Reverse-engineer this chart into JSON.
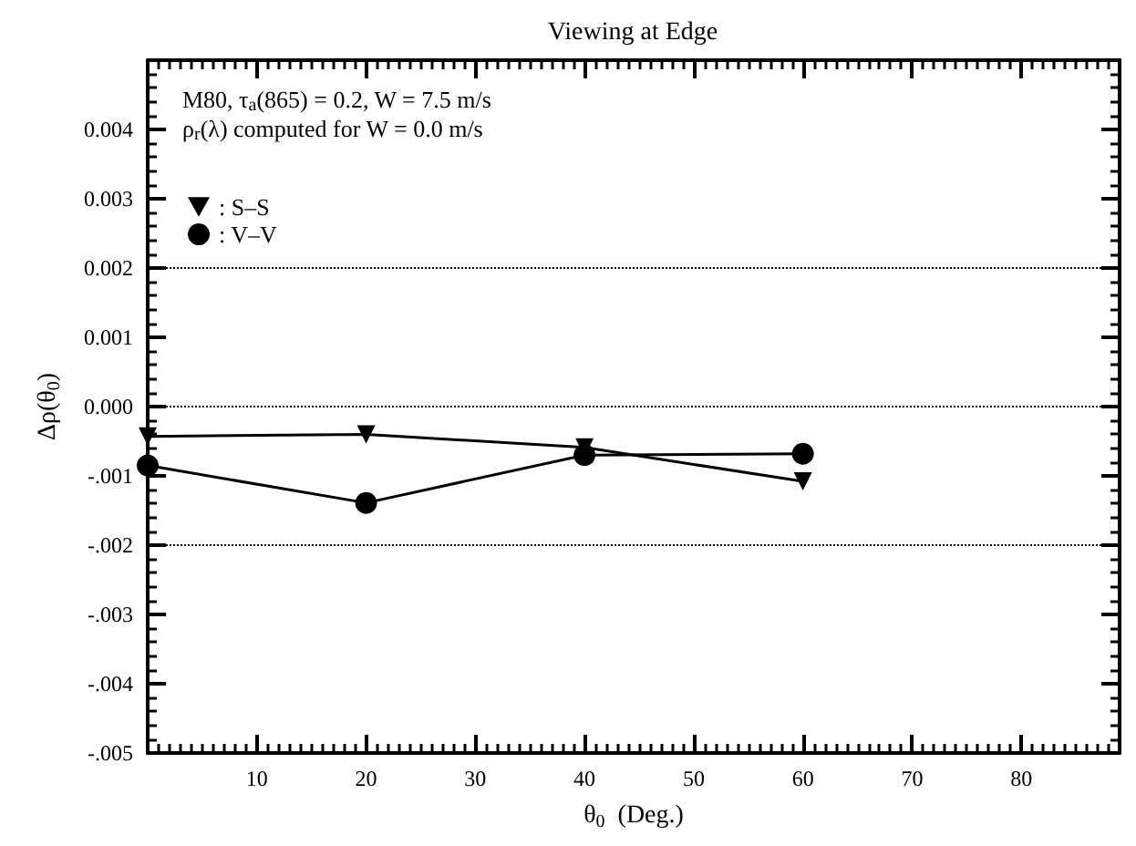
{
  "chart_data": {
    "type": "line",
    "title": "Viewing at Edge",
    "xlabel": "θ$_{0}$  (Deg.)",
    "ylabel": "Δρ(θ$_{0}$)",
    "annotations": [
      "M80, τ$_{a}$(865) = 0.2, W = 7.5 m/s",
      "ρ$_{r}$(λ) computed for W = 0.0 m/s"
    ],
    "x": [
      0,
      20,
      40,
      60
    ],
    "series": [
      {
        "name": ": S–S",
        "color": "#000000",
        "marker": "triangle",
        "values": [
          -0.00043,
          -0.0004,
          -0.00059,
          -0.00108
        ]
      },
      {
        "name": ": V–V",
        "color": "#000000",
        "marker": "circle",
        "values": [
          -0.00085,
          -0.00139,
          -0.0007,
          -0.00068
        ]
      }
    ],
    "xlim": [
      0,
      89
    ],
    "xticks": [
      10,
      20,
      30,
      40,
      50,
      60,
      70,
      80
    ],
    "ylim": [
      -0.005,
      0.005
    ],
    "yticks": [
      {
        "value": -0.005,
        "label": "-.005"
      },
      {
        "value": -0.004,
        "label": "-.004"
      },
      {
        "value": -0.003,
        "label": "-.003"
      },
      {
        "value": -0.002,
        "label": "-.002"
      },
      {
        "value": -0.001,
        "label": "-.001"
      },
      {
        "value": 0,
        "label": "0.000"
      },
      0.001,
      0.002,
      0.003,
      0.004
    ],
    "ref_lines": [
      {
        "axis": "y",
        "value": 0.002,
        "line_style": "dotted"
      },
      {
        "axis": "y",
        "value": 0,
        "line_style": "dotted"
      },
      {
        "axis": "y",
        "value": -0.002,
        "line_style": "dotted"
      }
    ],
    "grid": false,
    "legend": "top left",
    "line_style": "solid"
  }
}
